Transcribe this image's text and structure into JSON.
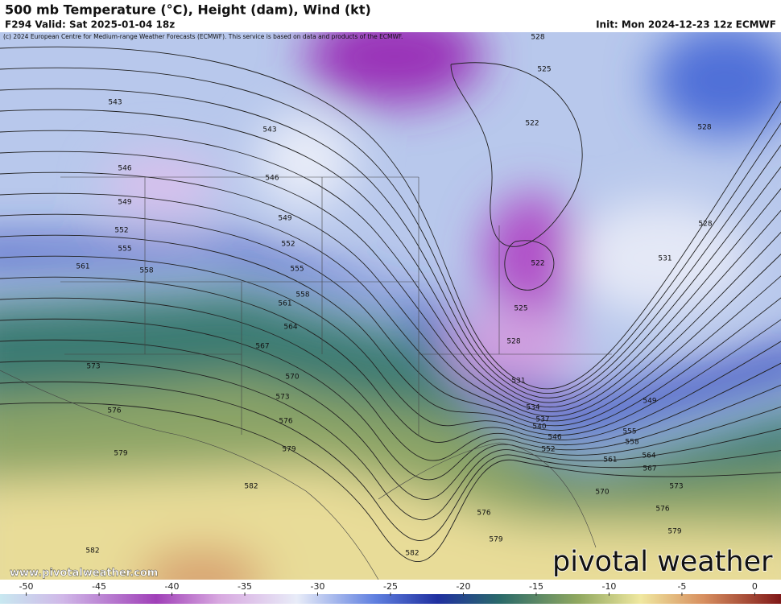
{
  "header": {
    "title": "500 mb Temperature (°C), Height (dam), Wind (kt)",
    "valid": "F294 Valid: Sat 2025-01-04 18z",
    "init": "Init: Mon 2024-12-23 12z ECMWF",
    "copyright": "(c) 2024 European Centre for Medium-range Weather Forecasts (ECMWF). This service is based on data and products of the ECMWF."
  },
  "map": {
    "contour_labels": [
      528,
      525,
      522,
      528,
      543,
      543,
      546,
      546,
      549,
      549,
      552,
      552,
      555,
      555,
      561,
      558,
      558,
      561,
      564,
      567,
      573,
      570,
      573,
      576,
      576,
      579,
      579,
      582,
      582,
      582,
      579,
      576,
      528,
      531,
      522,
      525,
      528,
      531,
      534,
      537,
      540,
      546,
      552,
      549,
      555,
      558,
      561,
      564,
      567,
      570,
      573,
      576,
      579
    ]
  },
  "footer": {
    "website": "www.pivotalweather.com",
    "logo": "pivotal weather"
  },
  "colorbar": {
    "range": [
      -51.8,
      1.8
    ],
    "ticks": [
      -50,
      -45,
      -40,
      -35,
      -30,
      -25,
      -20,
      -15,
      -10,
      -5,
      0
    ]
  }
}
